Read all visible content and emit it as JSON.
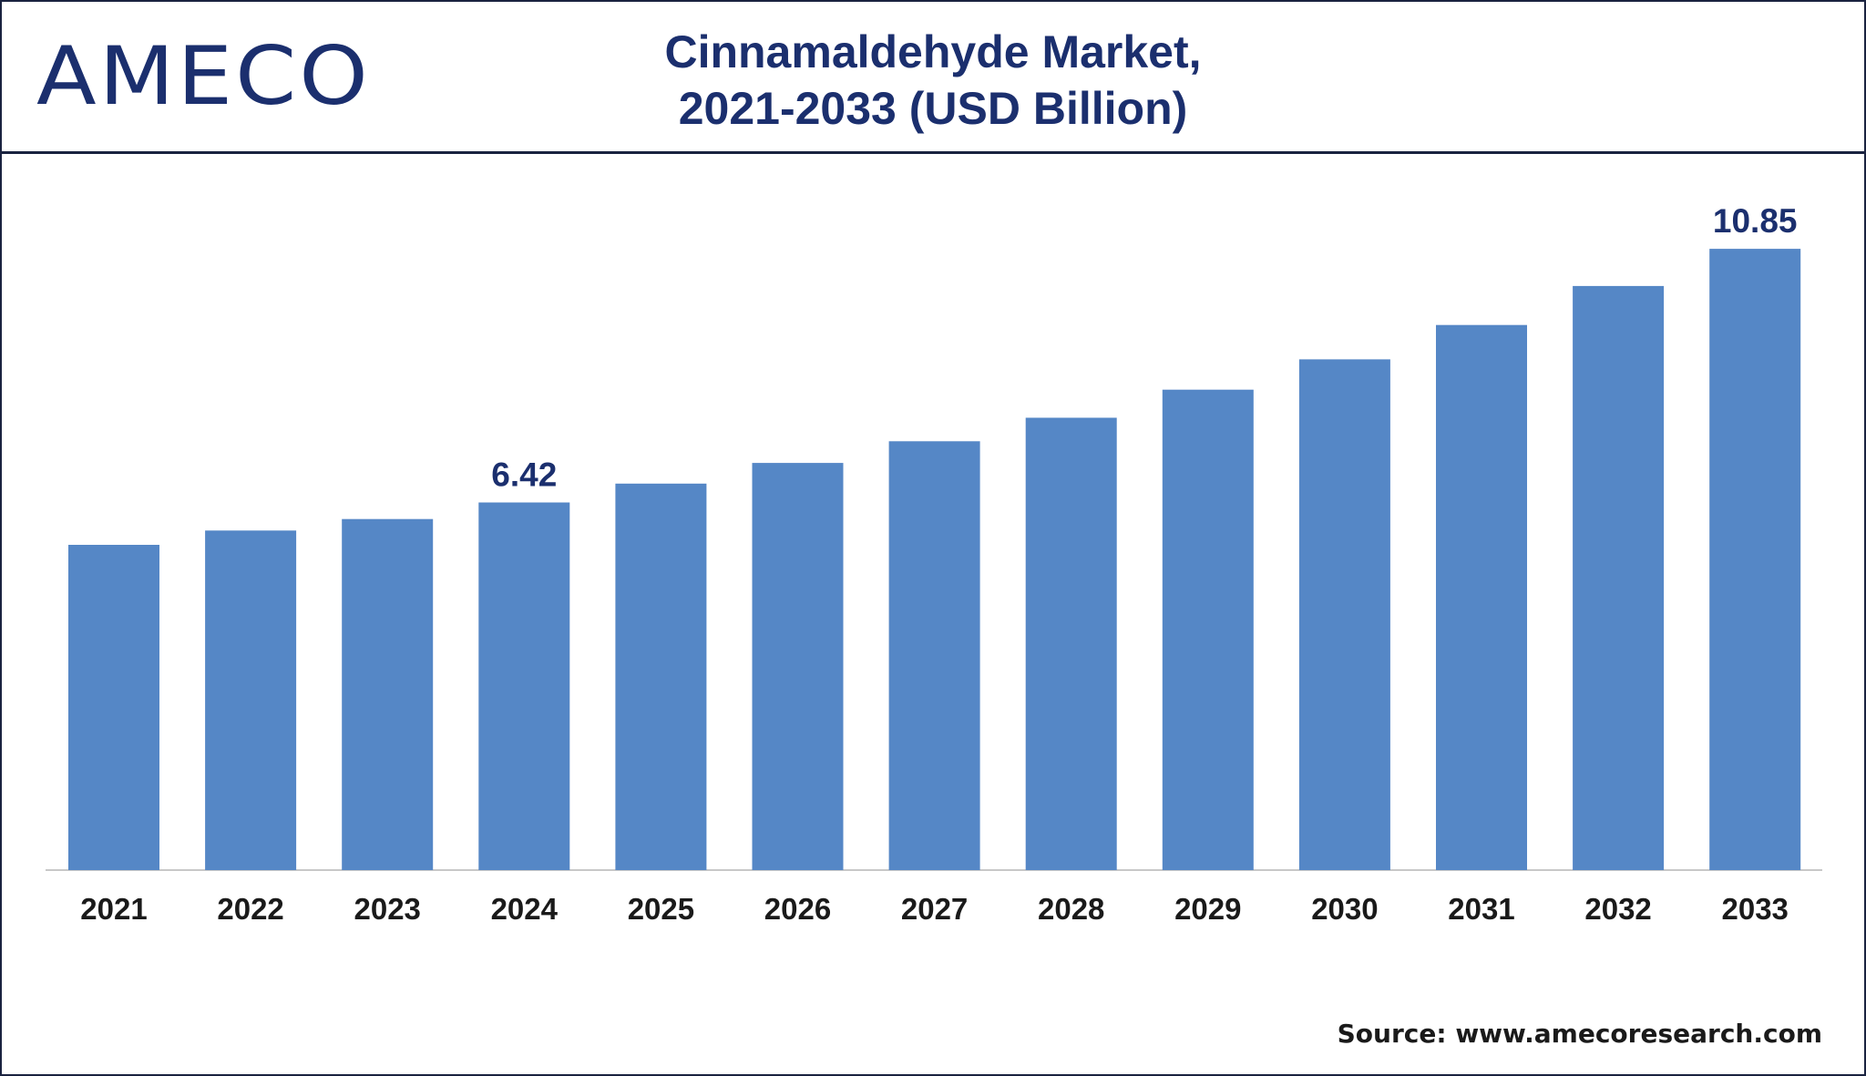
{
  "logo": {
    "text": "AMECO"
  },
  "title": {
    "line1": "Cinnamaldehyde Market,",
    "line2": "2021-2033 (USD Billion)"
  },
  "source": "Source: www.amecoresearch.com",
  "colors": {
    "bar": "#5587c6",
    "title": "#1b2f6e",
    "axis_text": "#1a1a1a",
    "border": "#1a2340"
  },
  "chart_data": {
    "type": "bar",
    "title": "Cinnamaldehyde Market, 2021-2033 (USD Billion)",
    "xlabel": "",
    "ylabel": "",
    "categories": [
      "2021",
      "2022",
      "2023",
      "2024",
      "2025",
      "2026",
      "2027",
      "2028",
      "2029",
      "2030",
      "2031",
      "2032",
      "2033"
    ],
    "values": [
      5.68,
      5.93,
      6.13,
      6.42,
      6.75,
      7.11,
      7.49,
      7.9,
      8.39,
      8.92,
      9.52,
      10.2,
      10.85
    ],
    "data_labels": [
      {
        "category": "2024",
        "text": "6.42"
      },
      {
        "category": "2033",
        "text": "10.85"
      }
    ],
    "ylim": [
      0,
      12
    ],
    "grid": false,
    "legend": "none"
  }
}
